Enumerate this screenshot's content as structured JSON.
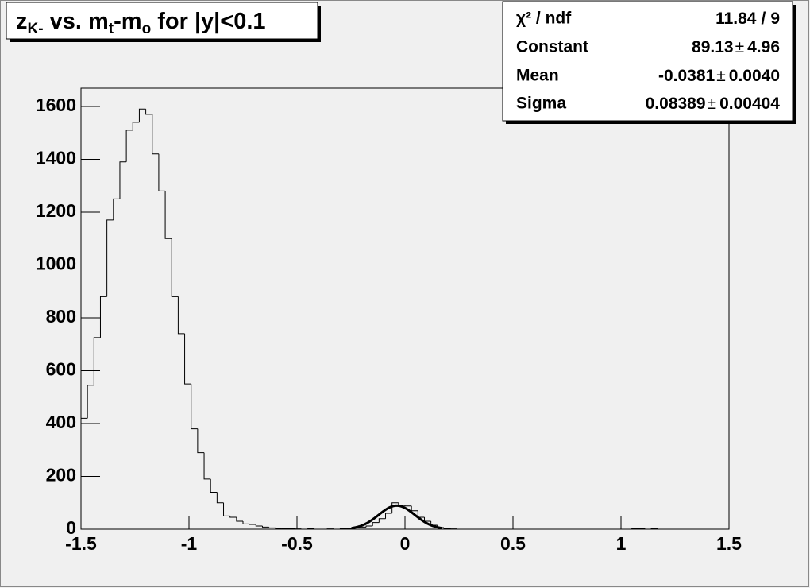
{
  "chart_data": {
    "type": "histogram",
    "title_parts": [
      {
        "text": "z"
      },
      {
        "text": "K-",
        "sub": true
      },
      {
        "text": " vs. m"
      },
      {
        "text": "t",
        "sub": true
      },
      {
        "text": "-m"
      },
      {
        "text": "o",
        "sub": true
      },
      {
        "text": " for |y|<0.1"
      }
    ],
    "bins": [
      -1.5,
      -1.47,
      -1.44,
      -1.41,
      -1.38,
      -1.35,
      -1.32,
      -1.29,
      -1.26,
      -1.23,
      -1.2,
      -1.17,
      -1.14,
      -1.11,
      -1.08,
      -1.05,
      -1.02,
      -0.99,
      -0.96,
      -0.93,
      -0.9,
      -0.87,
      -0.84,
      -0.81,
      -0.78,
      -0.75,
      -0.72,
      -0.69,
      -0.66,
      -0.63,
      -0.6,
      -0.57,
      -0.54,
      -0.51,
      -0.48,
      -0.45,
      -0.42,
      -0.39,
      -0.36,
      -0.33,
      -0.3,
      -0.27,
      -0.24,
      -0.21,
      -0.18,
      -0.15,
      -0.12,
      -0.09,
      -0.06,
      -0.03,
      0,
      0.03,
      0.06,
      0.09,
      0.12,
      0.15,
      0.18,
      0.21,
      0.24,
      0.27,
      0.3,
      0.33,
      0.36,
      0.39,
      0.42,
      0.45,
      0.48,
      0.51,
      0.54,
      0.57,
      0.6,
      0.63,
      0.66,
      0.69,
      0.72,
      0.75,
      0.78,
      0.81,
      0.84,
      0.87,
      0.9,
      0.93,
      0.96,
      0.99,
      1.02,
      1.05,
      1.08,
      1.11,
      1.14,
      1.17,
      1.2,
      1.23,
      1.26,
      1.29,
      1.32,
      1.35,
      1.38,
      1.41,
      1.44,
      1.47,
      1.5
    ],
    "values": [
      420,
      545,
      725,
      880,
      1170,
      1250,
      1390,
      1510,
      1540,
      1590,
      1570,
      1420,
      1280,
      1100,
      880,
      740,
      550,
      380,
      290,
      190,
      140,
      100,
      50,
      45,
      30,
      20,
      18,
      12,
      8,
      5,
      3,
      3,
      2,
      1,
      0,
      2,
      0,
      0,
      1,
      0,
      2,
      3,
      5,
      8,
      12,
      25,
      40,
      60,
      100,
      90,
      88,
      70,
      45,
      30,
      15,
      6,
      3,
      1,
      0,
      0,
      0,
      0,
      0,
      0,
      0,
      0,
      0,
      0,
      0,
      0,
      0,
      0,
      0,
      0,
      0,
      0,
      0,
      0,
      0,
      0,
      0,
      0,
      0,
      0,
      0,
      3,
      3,
      0,
      2,
      0,
      0,
      0,
      0,
      0,
      0,
      0,
      0,
      0,
      0,
      0
    ],
    "xlim": [
      -1.5,
      1.5
    ],
    "xticks": [
      -1.5,
      -1,
      -0.5,
      0,
      0.5,
      1,
      1.5
    ],
    "ylim": [
      0,
      1669
    ],
    "yticks": [
      0,
      200,
      400,
      600,
      800,
      1000,
      1200,
      1400,
      1600
    ],
    "color": "#000000",
    "fit_color": "#000000",
    "stats": {
      "chi2_label": "χ² / ndf",
      "chi2": 11.84,
      "chi2_separator": "/",
      "ndf": 9,
      "error_sign": "±",
      "rows": [
        {
          "name": "Constant",
          "value": 89.13,
          "error": 4.96
        },
        {
          "name": "Mean",
          "value": -0.0381,
          "error": {
            "value": 0.004,
            "label": "0.0040"
          }
        },
        {
          "name": "Sigma",
          "value": 0.08389,
          "error": 0.00404
        }
      ]
    }
  }
}
